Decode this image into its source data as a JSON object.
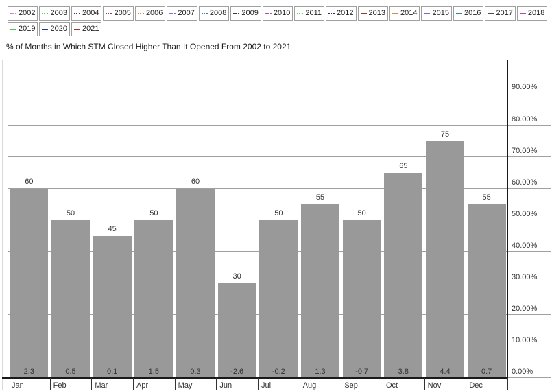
{
  "title": "% of Months in Which STM Closed Higher Than It Opened From 2002 to 2021",
  "legend": {
    "items": [
      {
        "year": "2002",
        "line": "dotted",
        "color": "#c48cc4"
      },
      {
        "year": "2003",
        "line": "dotted",
        "color": "#77bb77"
      },
      {
        "year": "2004",
        "line": "dotted",
        "color": "#2f2f8f"
      },
      {
        "year": "2005",
        "line": "dotted",
        "color": "#994040"
      },
      {
        "year": "2006",
        "line": "dotted",
        "color": "#cc8855"
      },
      {
        "year": "2007",
        "line": "dotted",
        "color": "#7777cc"
      },
      {
        "year": "2008",
        "line": "dotted",
        "color": "#4f7399"
      },
      {
        "year": "2009",
        "line": "dotted",
        "color": "#3a3a3a"
      },
      {
        "year": "2010",
        "line": "dotted",
        "color": "#aa55aa"
      },
      {
        "year": "2011",
        "line": "dotted",
        "color": "#66cc66"
      },
      {
        "year": "2012",
        "line": "dotted",
        "color": "#2d2d73"
      },
      {
        "year": "2013",
        "line": "solid",
        "color": "#993333"
      },
      {
        "year": "2014",
        "line": "solid",
        "color": "#d08a4e"
      },
      {
        "year": "2015",
        "line": "solid",
        "color": "#7766cc"
      },
      {
        "year": "2016",
        "line": "solid",
        "color": "#338888"
      },
      {
        "year": "2017",
        "line": "solid",
        "color": "#4d4d4d"
      },
      {
        "year": "2018",
        "line": "solid",
        "color": "#bb44bb"
      },
      {
        "year": "2019",
        "line": "solid",
        "color": "#55bb55"
      },
      {
        "year": "2020",
        "line": "solid",
        "color": "#2d3a8c"
      },
      {
        "year": "2021",
        "line": "solid",
        "color": "#a03333"
      }
    ]
  },
  "chart_data": {
    "type": "bar",
    "title": "% of Months in Which STM Closed Higher Than It Opened From 2002 to 2021",
    "categories": [
      "Jan",
      "Feb",
      "Mar",
      "Apr",
      "May",
      "Jun",
      "Jul",
      "Aug",
      "Sep",
      "Oct",
      "Nov",
      "Dec"
    ],
    "values": [
      60,
      50,
      45,
      50,
      60,
      30,
      50,
      55,
      50,
      65,
      75,
      55
    ],
    "bar_top_labels": [
      "60",
      "50",
      "45",
      "50",
      "60",
      "30",
      "50",
      "55",
      "50",
      "65",
      "75",
      "55"
    ],
    "bar_footer_values": [
      "2.3",
      "0.5",
      "0.1",
      "1.5",
      "0.3",
      "-2.6",
      "-0.2",
      "1.3",
      "-0.7",
      "3.8",
      "4.4",
      "0.7"
    ],
    "y_ticks": [
      {
        "value": 90,
        "label": "90.00%"
      },
      {
        "value": 80,
        "label": "80.00%"
      },
      {
        "value": 70,
        "label": "70.00%"
      },
      {
        "value": 60,
        "label": "60.00%"
      },
      {
        "value": 50,
        "label": "50.00%"
      },
      {
        "value": 40,
        "label": "40.00%"
      },
      {
        "value": 30,
        "label": "30.00%"
      },
      {
        "value": 20,
        "label": "20.00%"
      },
      {
        "value": 10,
        "label": "10.00%"
      },
      {
        "value": 0,
        "label": "0.00%"
      }
    ],
    "ylim": [
      0,
      100
    ],
    "grid": true,
    "value_axis_side": "right",
    "legend_position": "top",
    "bar_color": "#999999",
    "axis_color": "#1a1a1a",
    "grid_color": "#a0a0a0",
    "label_color": "#333333",
    "plot_border_color": "#d9d9d9"
  }
}
